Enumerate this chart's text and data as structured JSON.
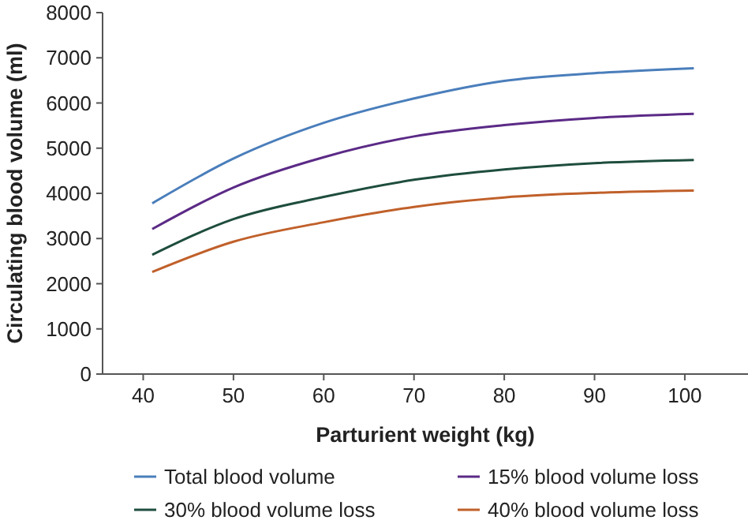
{
  "chart_data": {
    "type": "line",
    "xlabel": "Parturient weight (kg)",
    "ylabel": "Circulating blood volume (ml)",
    "x": [
      41,
      50,
      60,
      70,
      80,
      90,
      101
    ],
    "series": [
      {
        "name": "Total blood volume",
        "color": "#4a7ebb",
        "values": [
          3780,
          4770,
          5560,
          6100,
          6490,
          6660,
          6770
        ]
      },
      {
        "name": "15% blood volume loss",
        "color": "#5b2a86",
        "values": [
          3210,
          4130,
          4800,
          5260,
          5510,
          5670,
          5760
        ]
      },
      {
        "name": "30% blood volume loss",
        "color": "#1e4d3e",
        "values": [
          2640,
          3430,
          3920,
          4300,
          4530,
          4670,
          4740
        ]
      },
      {
        "name": "40% blood volume loss",
        "color": "#c0602a",
        "values": [
          2260,
          2930,
          3360,
          3700,
          3910,
          4010,
          4060
        ]
      }
    ],
    "xlim": [
      35.5,
      107
    ],
    "xticks": [
      40,
      50,
      60,
      70,
      80,
      90,
      100
    ],
    "ylim": [
      0,
      8000
    ],
    "yticks": [
      0,
      1000,
      2000,
      3000,
      4000,
      5000,
      6000,
      7000,
      8000
    ],
    "grid": false,
    "legend": "bottom",
    "marker": "none",
    "line_style": "solid"
  }
}
